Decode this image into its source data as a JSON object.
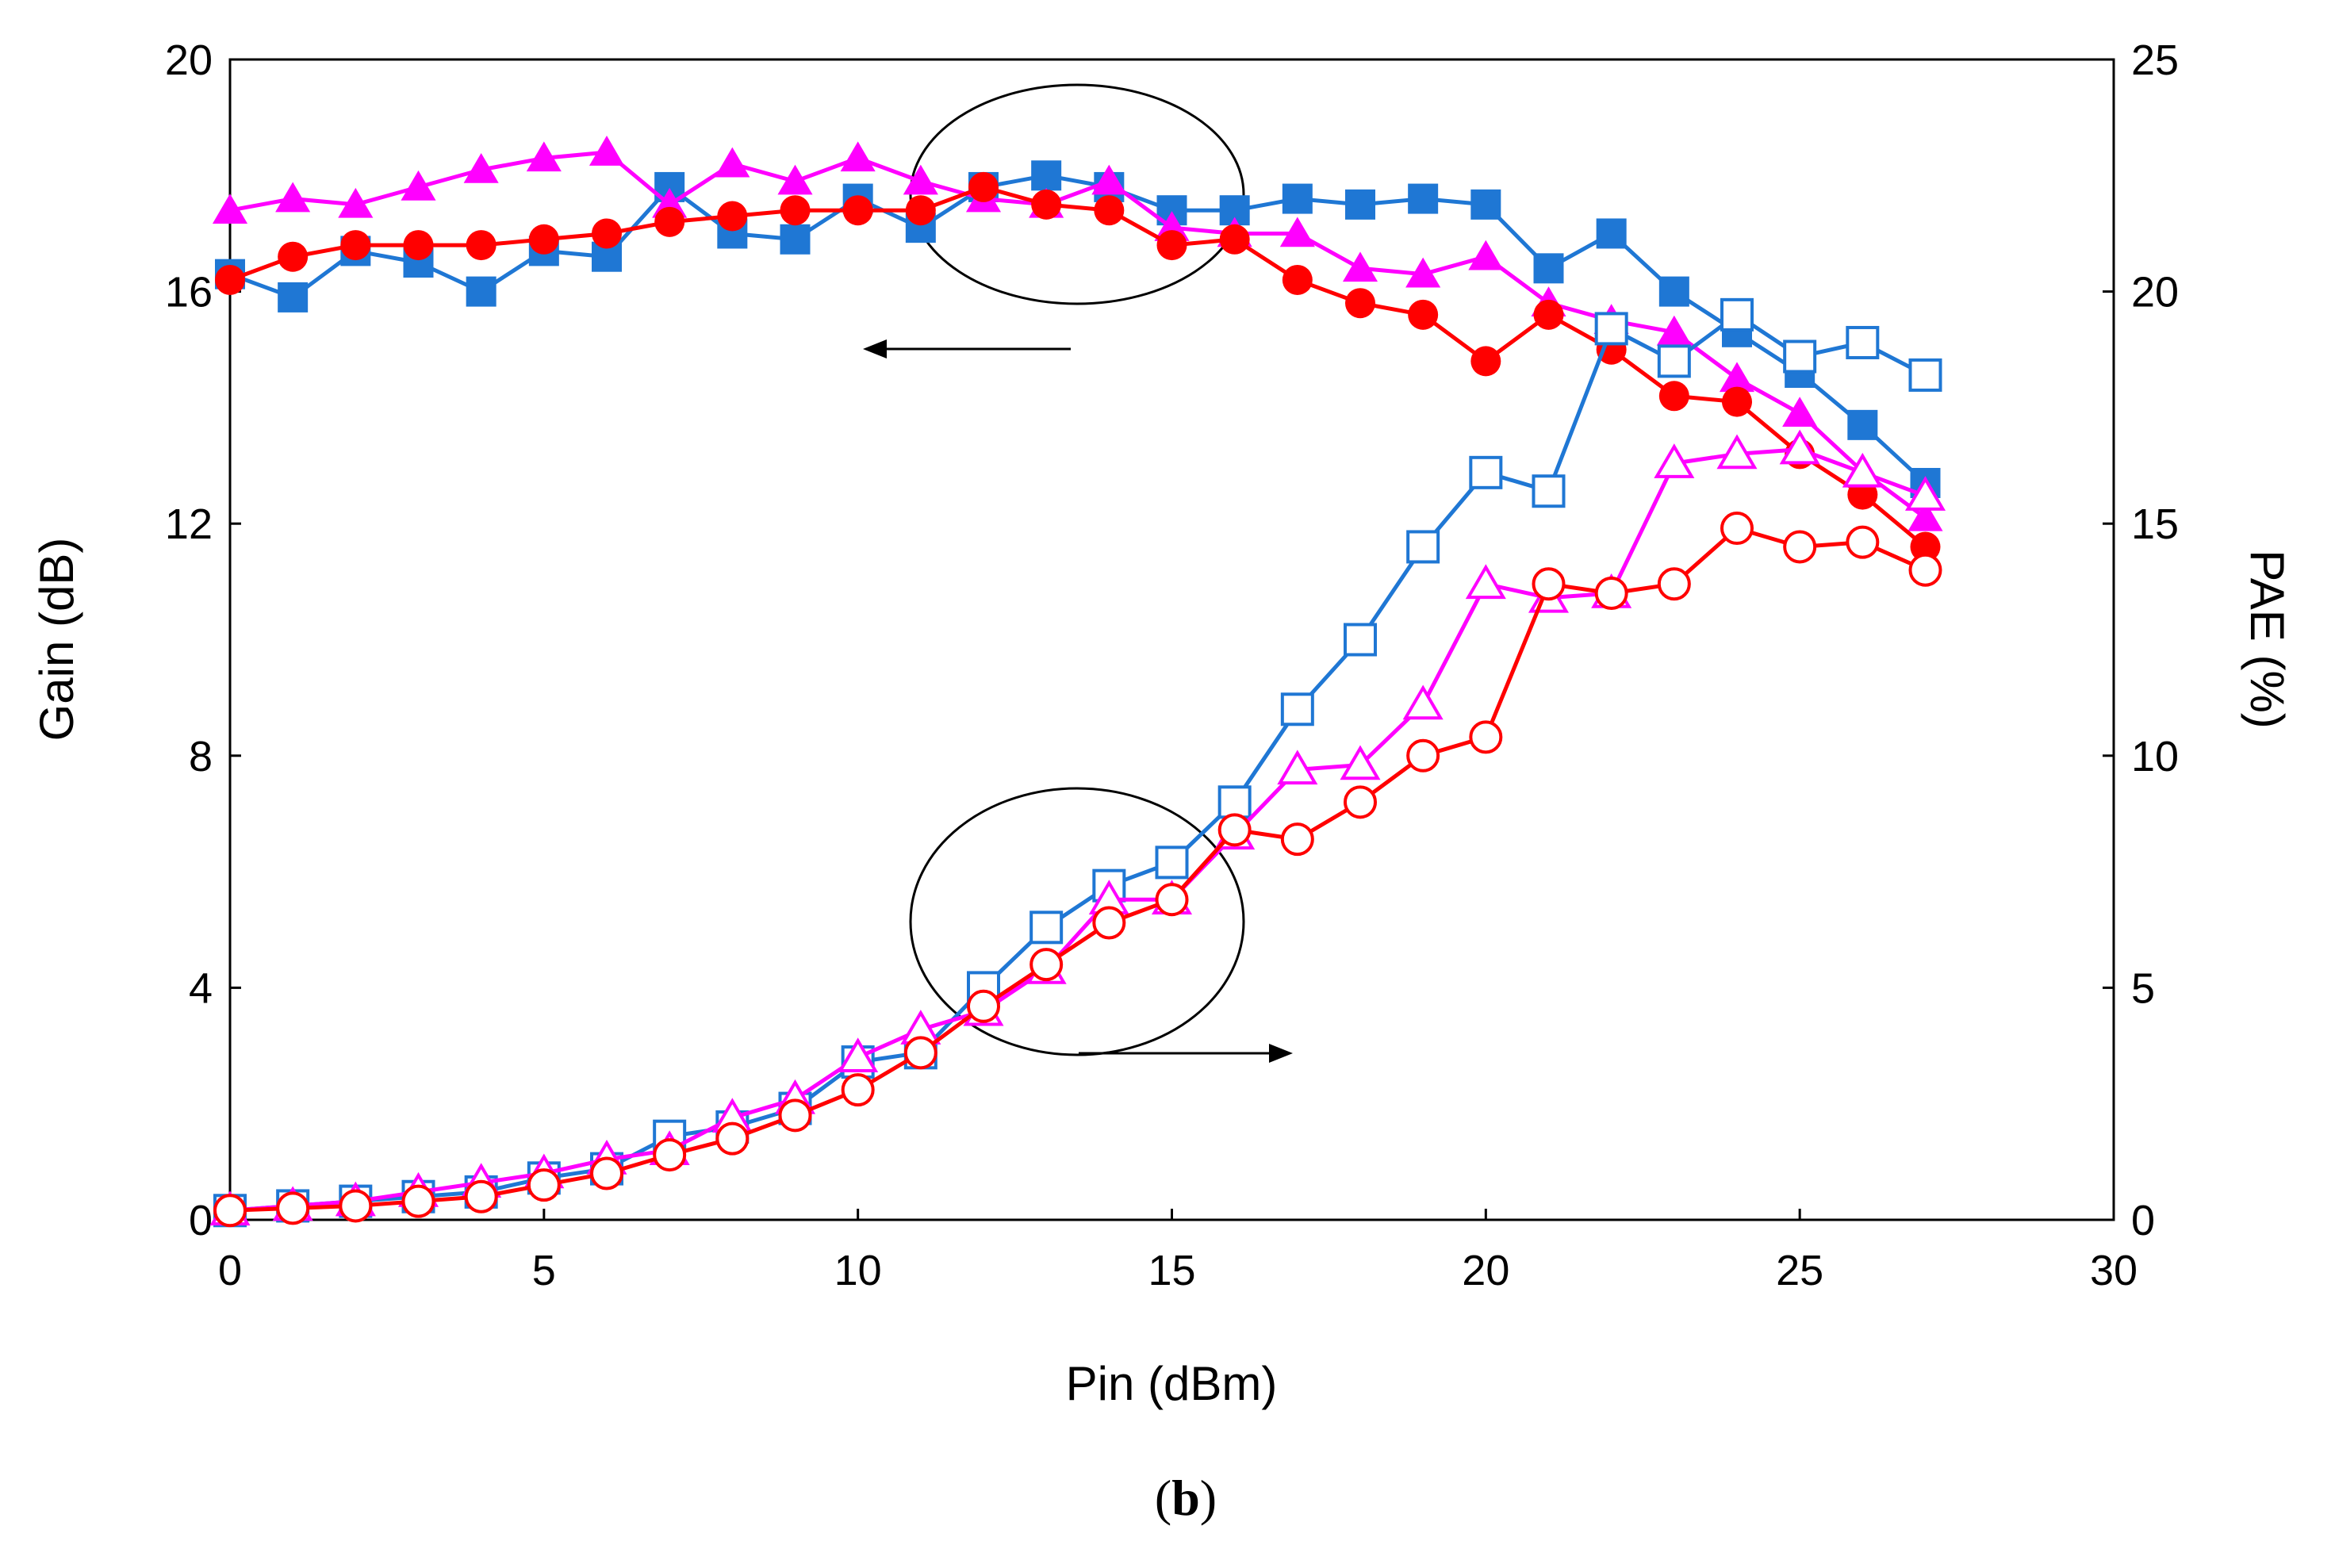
{
  "caption": {
    "open_paren": "(",
    "letter": "b",
    "close_paren": ")"
  },
  "chart_data": {
    "type": "line",
    "xlabel": "Pin (dBm)",
    "ylabel": "Gain (dB)",
    "y2label": "PAE (%)",
    "xlim": [
      0,
      30
    ],
    "ylim": [
      0,
      20
    ],
    "y2lim": [
      0,
      25
    ],
    "xticks": [
      "0",
      "5",
      "10",
      "15",
      "20",
      "25",
      "30"
    ],
    "yticks": [
      "0",
      "4",
      "8",
      "12",
      "16",
      "20"
    ],
    "y2ticks": [
      "0",
      "5",
      "10",
      "15",
      "20",
      "25"
    ],
    "grid": false,
    "x": [
      0,
      1,
      2,
      3,
      4,
      5,
      6,
      7,
      8,
      9,
      10,
      11,
      12,
      13,
      14,
      15,
      16,
      17,
      18,
      19,
      20,
      21,
      22,
      23,
      24,
      25,
      26,
      27
    ],
    "series": [
      {
        "axis": "left",
        "marker": "square",
        "filled": true,
        "color": "#1F77D4",
        "values": [
          16.3,
          15.9,
          16.7,
          16.5,
          16.0,
          16.7,
          16.6,
          17.8,
          17.0,
          16.9,
          17.6,
          17.1,
          17.8,
          18.0,
          17.8,
          17.4,
          17.4,
          17.6,
          17.5,
          17.6,
          17.5,
          16.4,
          17.0,
          16.0,
          15.3,
          14.6,
          13.7,
          12.7
        ]
      },
      {
        "axis": "left",
        "marker": "triangle",
        "filled": true,
        "color": "#FF00FF",
        "values": [
          17.4,
          17.6,
          17.5,
          17.8,
          18.1,
          18.3,
          18.4,
          17.5,
          18.2,
          17.9,
          18.3,
          17.9,
          17.6,
          17.5,
          17.9,
          17.1,
          17.0,
          17.0,
          16.4,
          16.3,
          16.6,
          15.8,
          15.5,
          15.3,
          14.5,
          13.9,
          12.9,
          12.1
        ]
      },
      {
        "axis": "left",
        "marker": "circle",
        "filled": true,
        "color": "#FF0000",
        "values": [
          16.2,
          16.6,
          16.8,
          16.8,
          16.8,
          16.9,
          17.0,
          17.2,
          17.3,
          17.4,
          17.4,
          17.4,
          17.8,
          17.5,
          17.4,
          16.8,
          16.9,
          16.2,
          15.8,
          15.6,
          14.8,
          15.6,
          15.0,
          14.2,
          14.1,
          13.2,
          12.5,
          11.6
        ]
      },
      {
        "axis": "right",
        "marker": "square",
        "filled": false,
        "color": "#1F77D4",
        "values": [
          0.2,
          0.3,
          0.4,
          0.5,
          0.6,
          0.9,
          1.1,
          1.8,
          2.0,
          2.4,
          3.4,
          3.6,
          5.0,
          6.3,
          7.2,
          7.7,
          9.0,
          11.0,
          12.5,
          14.5,
          16.1,
          15.7,
          19.2,
          18.5,
          19.5,
          18.6,
          18.9,
          18.2
        ]
      },
      {
        "axis": "right",
        "marker": "triangle",
        "filled": false,
        "color": "#FF00FF",
        "values": [
          0.2,
          0.3,
          0.4,
          0.6,
          0.8,
          1.0,
          1.3,
          1.5,
          2.2,
          2.6,
          3.5,
          4.1,
          4.5,
          5.4,
          6.9,
          6.9,
          8.3,
          9.7,
          9.8,
          11.1,
          13.7,
          13.4,
          13.5,
          16.3,
          16.5,
          16.6,
          16.1,
          15.6
        ]
      },
      {
        "axis": "right",
        "marker": "circle",
        "filled": false,
        "color": "#FF0000",
        "values": [
          0.2,
          0.25,
          0.3,
          0.4,
          0.5,
          0.75,
          1.0,
          1.4,
          1.75,
          2.25,
          2.8,
          3.6,
          4.6,
          5.5,
          6.4,
          6.9,
          8.4,
          8.2,
          9.0,
          10.0,
          10.4,
          13.7,
          13.5,
          13.7,
          14.9,
          14.5,
          14.6,
          14.0
        ]
      }
    ]
  }
}
